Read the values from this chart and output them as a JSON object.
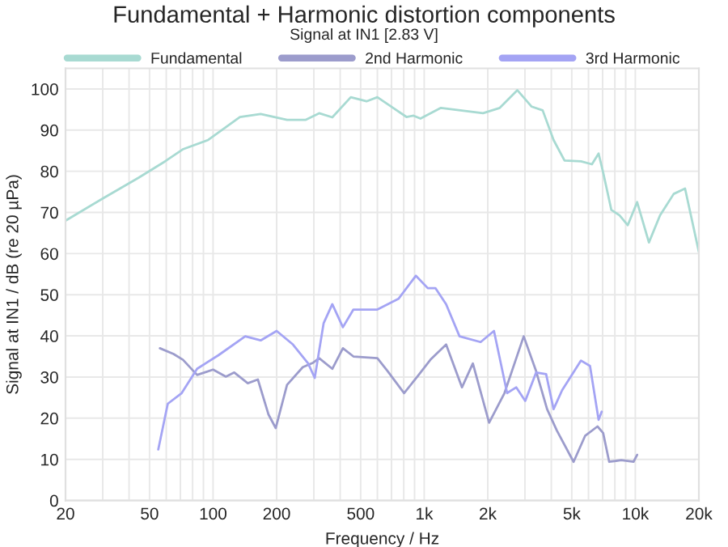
{
  "chart_data": {
    "type": "line",
    "title": "Fundamental + Harmonic distortion components",
    "subtitle": "Signal at IN1 [2.83 V]",
    "xlabel": "Frequency / Hz",
    "ylabel": "Signal at IN1 / dB (re 20 µPa)",
    "log": "x",
    "xlim": [
      20,
      20000
    ],
    "xticks": [
      20,
      50,
      100,
      200,
      500,
      {
        "value": 1000,
        "label": "1k"
      },
      {
        "value": 2000,
        "label": "2k"
      },
      {
        "value": 5000,
        "label": "5k"
      },
      {
        "value": 10000,
        "label": "10k"
      },
      {
        "value": 20000,
        "label": "20k"
      }
    ],
    "ylim": [
      0,
      105
    ],
    "yticks": [
      0,
      10,
      20,
      30,
      40,
      50,
      60,
      70,
      80,
      90,
      100
    ],
    "grid": true,
    "legend": "top",
    "marker": "none",
    "line_style": "solid",
    "series": [
      {
        "name": "Fundamental",
        "color": "#a8dad2",
        "x": [
          20,
          29.6,
          44.3,
          59.2,
          72.3,
          94.8,
          134,
          168,
          224,
          275,
          318,
          367,
          449,
          533,
          600,
          713,
          824,
          890,
          960,
          1200,
          1900,
          2280,
          2760,
          3230,
          3640,
          4100,
          4620,
          5530,
          6230,
          6700,
          7040,
          7700,
          8420,
          9210,
          10200,
          11600,
          13100,
          15200,
          17200,
          20000
        ],
        "values": [
          68,
          73.2,
          78.4,
          82.4,
          85.4,
          87.6,
          93.2,
          93.9,
          92.5,
          92.5,
          94.1,
          93.1,
          98,
          97,
          98,
          95.4,
          93.2,
          93.5,
          92.8,
          95.4,
          94.1,
          95.4,
          99.7,
          95.7,
          94.8,
          87.6,
          82.6,
          82.4,
          81.7,
          84.3,
          79.7,
          70.6,
          69.3,
          66.9,
          72.5,
          62.7,
          69.3,
          74.5,
          75.8,
          60.4
        ]
      },
      {
        "name": "2nd Harmonic",
        "color": "#9c9ccc",
        "x": [
          56,
          65,
          72,
          84,
          100,
          115,
          126,
          146,
          163,
          183,
          198,
          224,
          266,
          298,
          318,
          367,
          412,
          462,
          600,
          672,
          803,
          928,
          1070,
          1270,
          1510,
          1700,
          2030,
          2400,
          2960,
          3390,
          3820,
          4250,
          5100,
          5780,
          6620,
          7040,
          7520,
          8570,
          9800,
          10200
        ],
        "values": [
          37,
          35.6,
          34.2,
          30.5,
          31.8,
          30.1,
          31.1,
          28.5,
          29.4,
          20.9,
          17.6,
          28.1,
          32.4,
          33.5,
          34.6,
          32,
          37,
          35,
          34.6,
          31.4,
          26.1,
          30.1,
          34.2,
          37.9,
          27.5,
          33.3,
          18.9,
          26.1,
          39.9,
          31.4,
          22.2,
          17,
          9.4,
          15.7,
          18,
          16.4,
          9.4,
          9.8,
          9.4,
          11.1
        ]
      },
      {
        "name": "3rd Harmonic",
        "color": "#a4a4f4",
        "x": [
          55,
          61,
          71,
          84,
          106,
          142,
          168,
          200,
          239,
          282,
          303,
          334,
          367,
          412,
          462,
          600,
          755,
          913,
          1040,
          1130,
          1270,
          1470,
          1850,
          2140,
          2470,
          2730,
          3010,
          3390,
          3780,
          4100,
          4500,
          5530,
          6100,
          6700,
          6930
        ],
        "values": [
          12.4,
          23.5,
          26.1,
          32,
          35.3,
          39.9,
          38.9,
          41.2,
          37.9,
          33.3,
          29.8,
          43.1,
          47.7,
          42.1,
          46.4,
          46.4,
          49,
          54.6,
          51.6,
          51.6,
          47.7,
          39.9,
          38.5,
          41.2,
          26.1,
          27.5,
          24.2,
          31.1,
          30.7,
          22.2,
          26.8,
          34,
          32.7,
          19.6,
          21.6
        ]
      }
    ]
  }
}
